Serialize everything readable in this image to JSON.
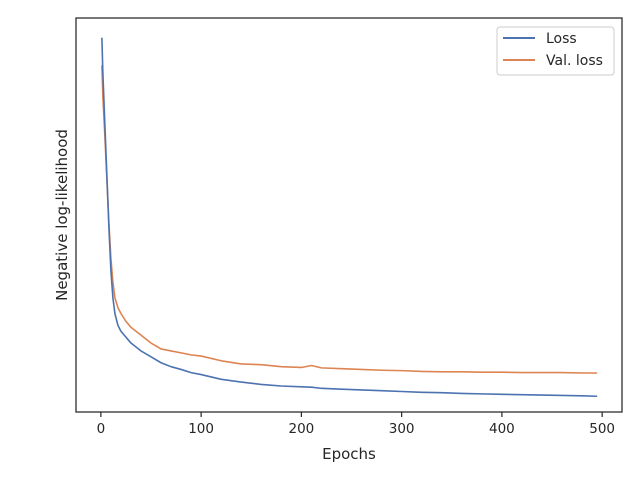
{
  "chart_data": {
    "type": "line",
    "title": "",
    "xlabel": "Epochs",
    "ylabel": "Negative log-likelihood",
    "xlim": [
      -24.8,
      519.8
    ],
    "ylim": [
      0.0,
      1.0
    ],
    "y_ticks_shown": false,
    "x_ticks": [
      0,
      100,
      200,
      300,
      400,
      500
    ],
    "x_tick_labels": [
      "0",
      "100",
      "200",
      "300",
      "400",
      "500"
    ],
    "grid": false,
    "legend": {
      "placement": "top-right"
    },
    "x_points": [
      1,
      2,
      4,
      6,
      8,
      10,
      12,
      14,
      17,
      20,
      25,
      30,
      40,
      50,
      60,
      70,
      80,
      90,
      100,
      120,
      140,
      160,
      180,
      200,
      210,
      220,
      240,
      260,
      280,
      300,
      320,
      340,
      360,
      380,
      400,
      420,
      440,
      460,
      480,
      495
    ],
    "series": [
      {
        "name": "Loss",
        "color": "#4c72b0",
        "values": [
          0.95,
          0.86,
          0.73,
          0.6,
          0.47,
          0.36,
          0.29,
          0.25,
          0.22,
          0.205,
          0.19,
          0.175,
          0.155,
          0.14,
          0.125,
          0.115,
          0.108,
          0.1,
          0.095,
          0.083,
          0.076,
          0.07,
          0.066,
          0.064,
          0.063,
          0.06,
          0.058,
          0.056,
          0.054,
          0.052,
          0.05,
          0.049,
          0.047,
          0.046,
          0.045,
          0.044,
          0.043,
          0.042,
          0.041,
          0.04
        ]
      },
      {
        "name": "Val. loss",
        "color": "#dd8452",
        "values": [
          0.88,
          0.8,
          0.7,
          0.59,
          0.48,
          0.39,
          0.33,
          0.29,
          0.265,
          0.25,
          0.23,
          0.215,
          0.195,
          0.175,
          0.16,
          0.155,
          0.15,
          0.145,
          0.142,
          0.13,
          0.122,
          0.12,
          0.115,
          0.113,
          0.118,
          0.112,
          0.11,
          0.108,
          0.106,
          0.105,
          0.103,
          0.102,
          0.102,
          0.101,
          0.101,
          0.1,
          0.1,
          0.1,
          0.099,
          0.099
        ]
      }
    ]
  }
}
